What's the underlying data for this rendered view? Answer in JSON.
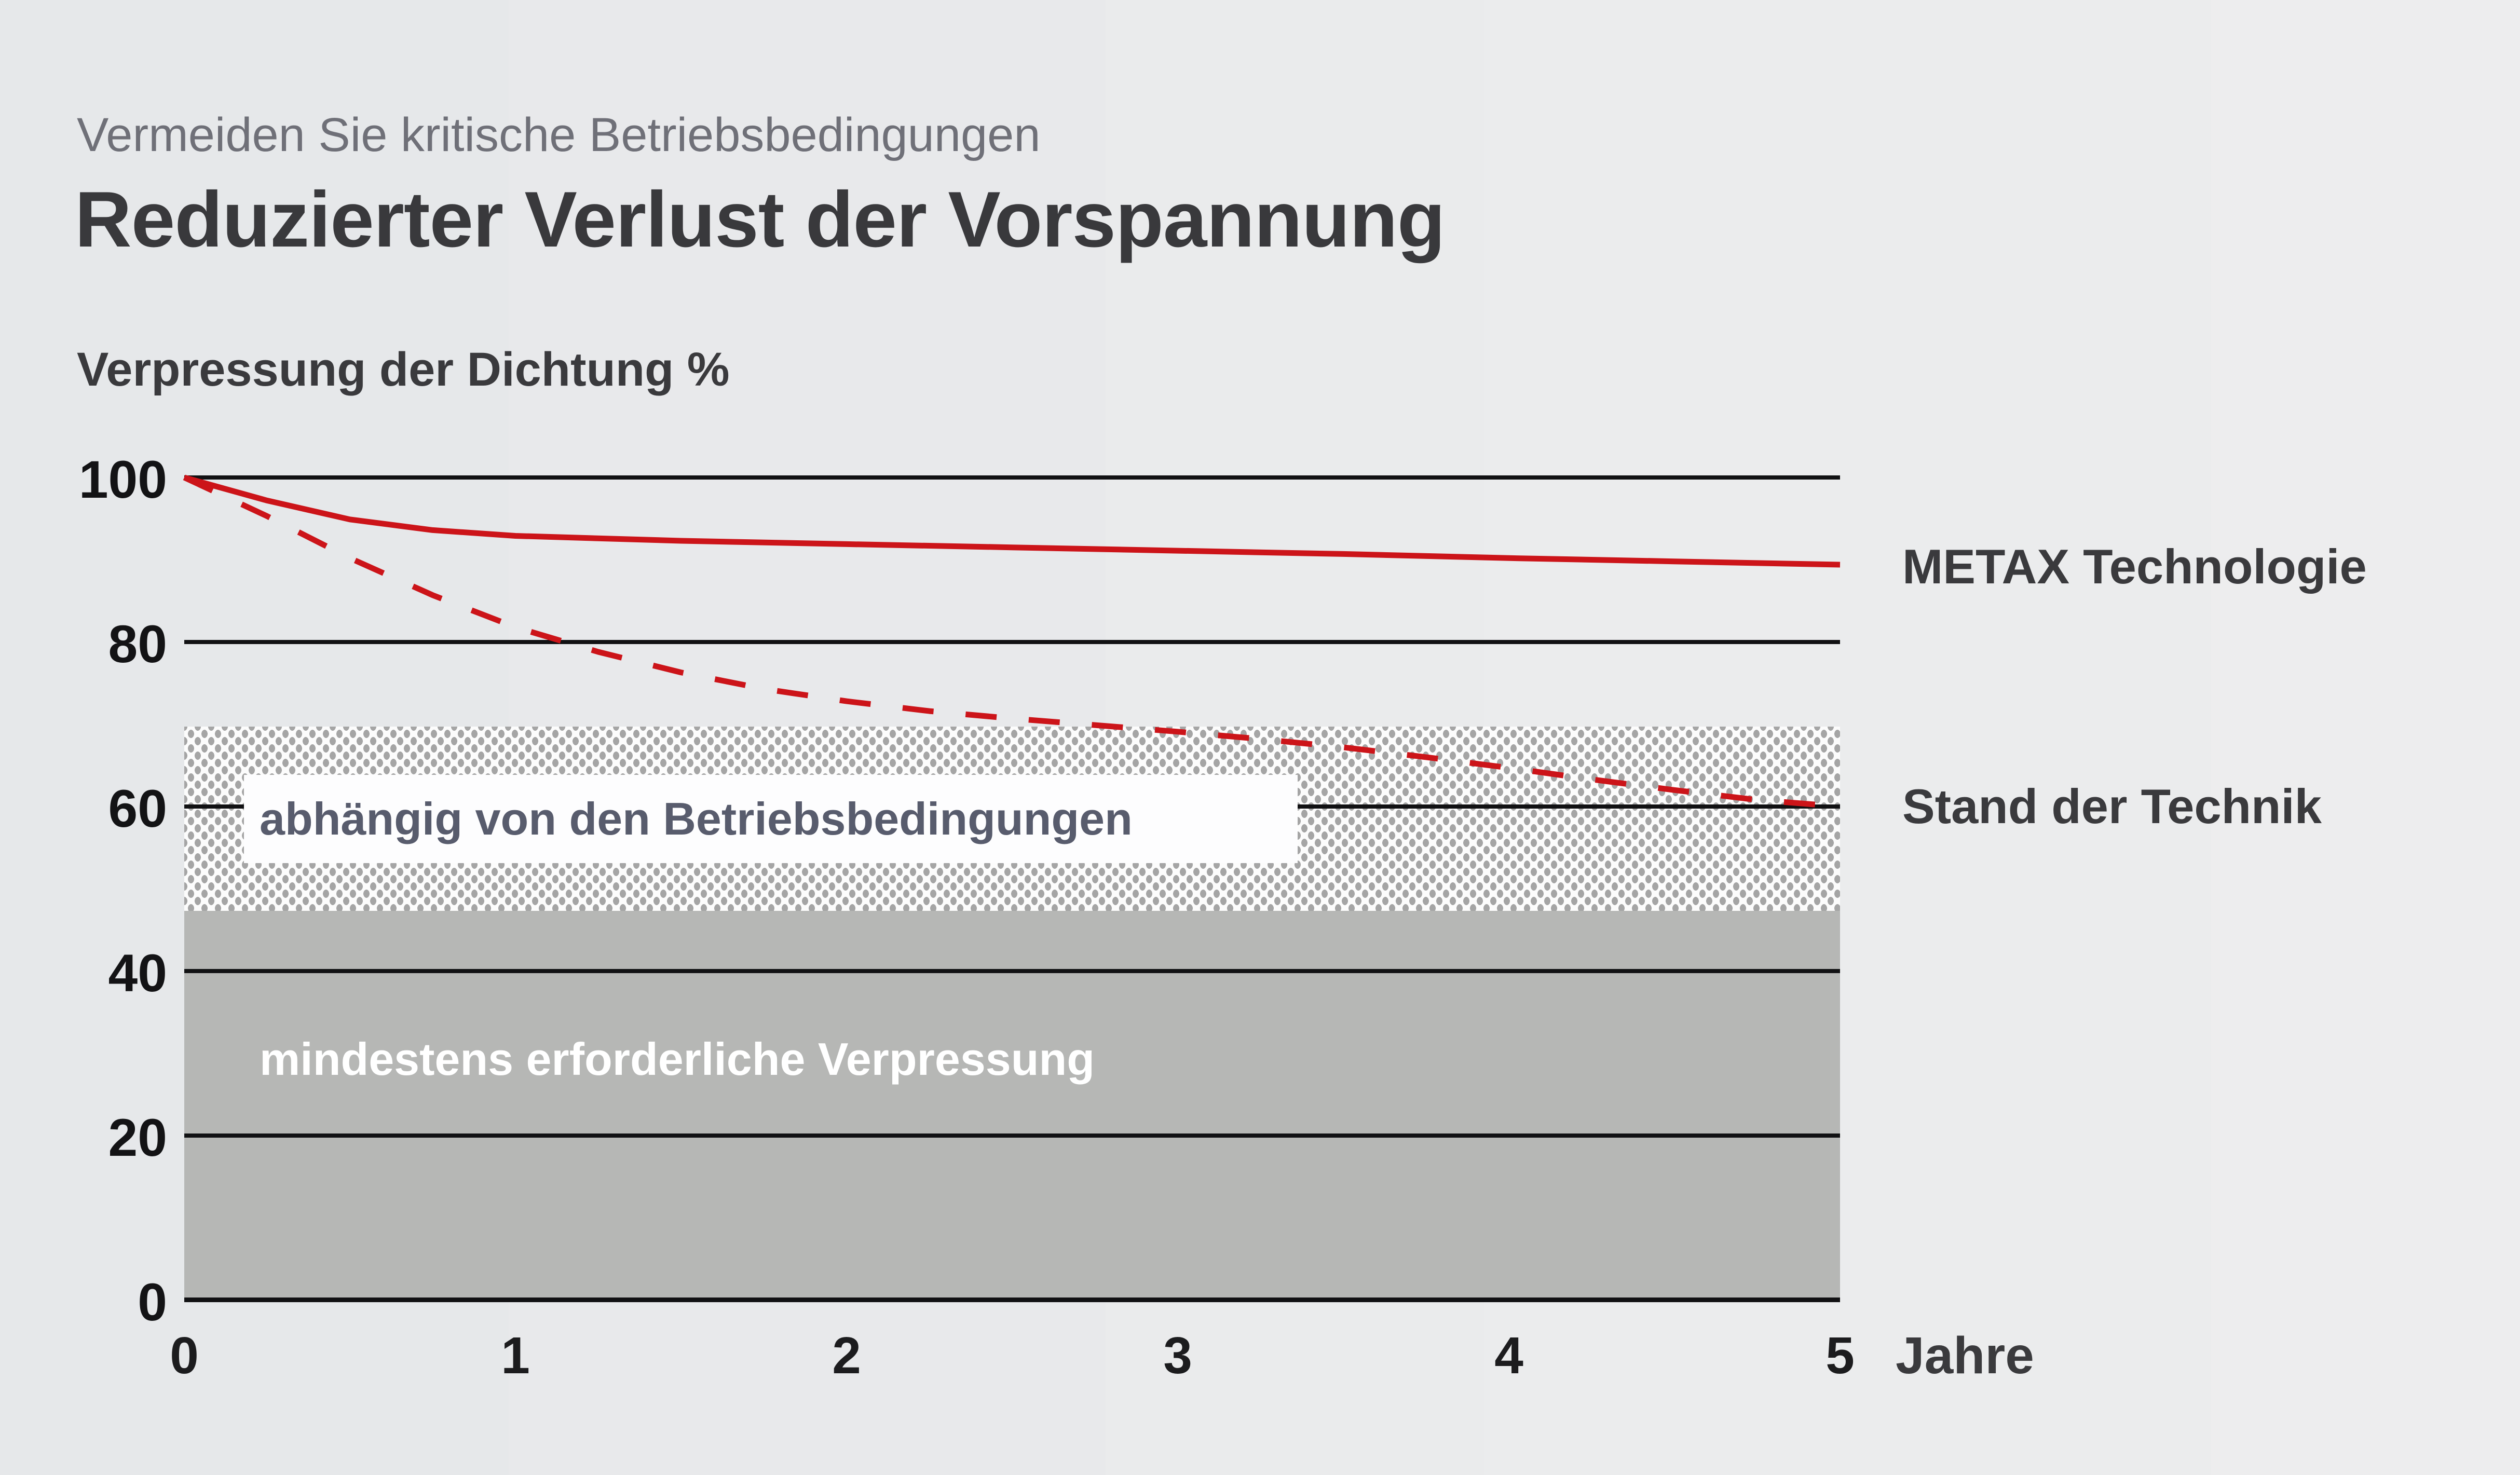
{
  "page": {
    "background": "#e9eaec",
    "accent_red": "#cc1419"
  },
  "header": {
    "subtitle": "Vermeiden Sie kritische Betriebsbedingungen",
    "title": "Reduzierter Verlust der Vorspannung"
  },
  "chart": {
    "y_axis_label": "Verpressung der Dichtung %",
    "x_unit_label": "Jahre",
    "y_ticks": [
      "100",
      "80",
      "60",
      "40",
      "20",
      "0"
    ],
    "x_ticks": [
      "0",
      "1",
      "2",
      "3",
      "4",
      "5"
    ],
    "series_labels": {
      "metax": "METAX Technologie",
      "stand": "Stand der Technik"
    },
    "band_labels": {
      "dependent": "abhängig von den Betriebsbedingungen",
      "minimum": "mindestens erforderliche Verpressung"
    },
    "colors": {
      "curve_red": "#cc1419",
      "gridline_black": "#111113",
      "gray_band": "#b6b7b5",
      "stipple_dot": "#a5a5a5",
      "box_text": "#585c6d",
      "title_text": "#39393c",
      "subtitle_text": "#6f7078"
    }
  },
  "chart_data": {
    "type": "line",
    "title": "Reduzierter Verlust der Vorspannung",
    "subtitle": "Vermeiden Sie kritische Betriebsbedingungen",
    "xlabel": "Jahre",
    "ylabel": "Verpressung der Dichtung %",
    "xlim": [
      0,
      5
    ],
    "ylim": [
      0,
      100
    ],
    "x_tick_values": [
      0,
      1,
      2,
      3,
      4,
      5
    ],
    "y_tick_values": [
      0,
      20,
      40,
      60,
      80,
      100
    ],
    "grid": "horizontal-only",
    "legend_position": "right-of-plot",
    "series": [
      {
        "name": "METAX Technologie",
        "style": "solid",
        "color": "#cc1419",
        "x": [
          0,
          0.25,
          0.5,
          0.75,
          1,
          1.5,
          2,
          2.5,
          3,
          3.5,
          4,
          4.5,
          5
        ],
        "y": [
          100,
          97.2,
          94.9,
          93.6,
          92.9,
          92.3,
          91.9,
          91.5,
          91.1,
          90.7,
          90.2,
          89.8,
          89.4
        ]
      },
      {
        "name": "Stand der Technik",
        "style": "dashed",
        "color": "#cc1419",
        "x": [
          0,
          0.25,
          0.5,
          0.75,
          1,
          1.25,
          1.5,
          1.75,
          2,
          2.25,
          2.5,
          2.75,
          3,
          3.25,
          3.5,
          3.75,
          4,
          4.25,
          4.5,
          4.75,
          5
        ],
        "y": [
          100,
          95.3,
          90.2,
          85.7,
          81.8,
          78.8,
          76.3,
          74.3,
          72.8,
          71.6,
          70.7,
          69.9,
          69.1,
          68.2,
          67.2,
          66.0,
          64.7,
          63.3,
          62.0,
          60.8,
          60.0
        ]
      }
    ],
    "bands": [
      {
        "label": "abhängig von den Betriebsbedingungen",
        "from": 47.3,
        "to": 69.7,
        "style": "stipple"
      },
      {
        "label": "mindestens erforderliche Verpressung",
        "from": 0,
        "to": 47.3,
        "style": "solid-gray"
      }
    ]
  }
}
